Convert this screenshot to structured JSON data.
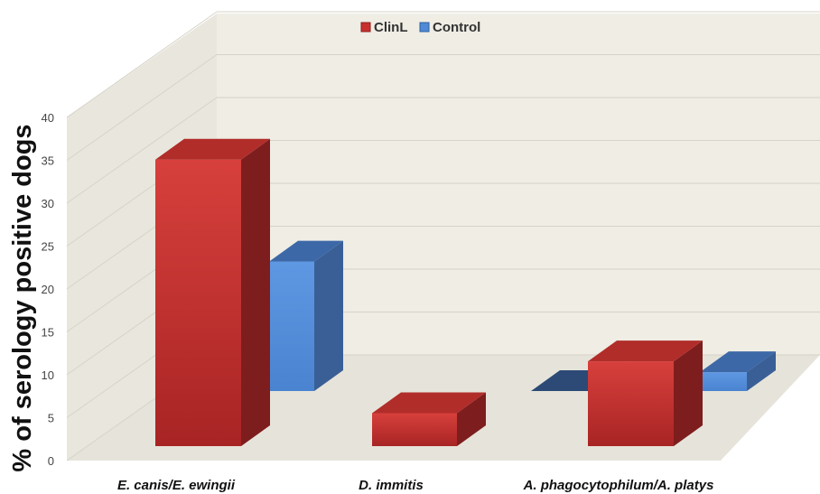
{
  "chart_data": {
    "type": "bar",
    "style": "3d-clustered-column",
    "title": "",
    "xlabel": "",
    "ylabel": "% of serology positive dogs",
    "categories": [
      "E. canis/E. ewingii",
      "D. immitis",
      "A. phagocytophilum/A. platys"
    ],
    "series": [
      {
        "name": "ClinL",
        "color": "#c8302e",
        "values": [
          36.5,
          4.2,
          10.8
        ]
      },
      {
        "name": "Control",
        "color": "#4f8ad6",
        "values": [
          16.5,
          0.0,
          2.4
        ]
      }
    ],
    "ylim": [
      0,
      40
    ],
    "yticks": [
      0,
      5,
      10,
      15,
      20,
      25,
      30,
      35,
      40
    ],
    "grid": true,
    "legend_position": "top-center",
    "background_color": "#efede4"
  }
}
